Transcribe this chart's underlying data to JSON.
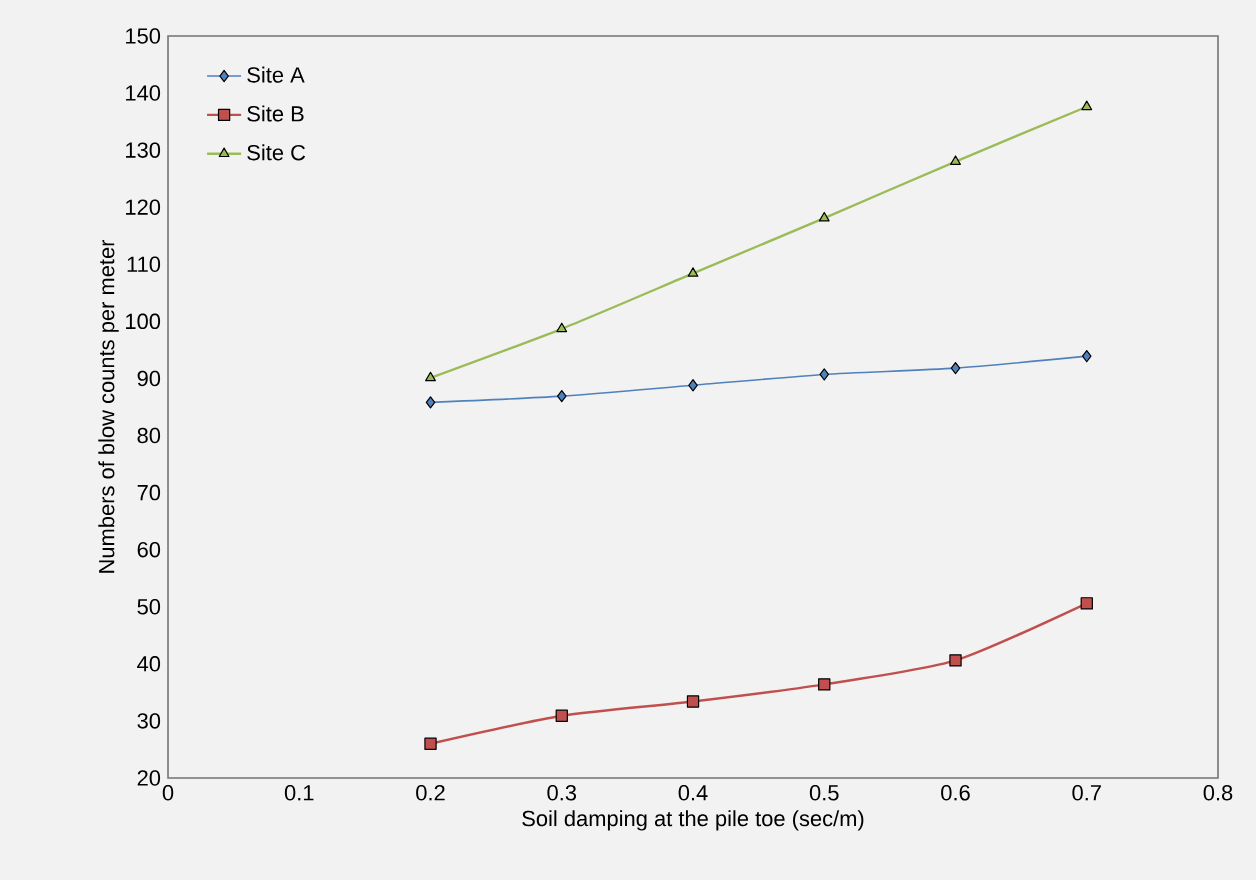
{
  "chart_data": {
    "type": "line",
    "xlabel": "Soil damping at the pile toe (sec/m)",
    "ylabel": "Numbers of blow counts per meter",
    "x": [
      0.2,
      0.3,
      0.4,
      0.5,
      0.6,
      0.7
    ],
    "series": [
      {
        "name": "Site A",
        "color": "#4f81bd",
        "marker": "diamond",
        "values": [
          85.8,
          86.9,
          88.8,
          90.7,
          91.8,
          93.9
        ]
      },
      {
        "name": "Site B",
        "color": "#c0504d",
        "marker": "square",
        "values": [
          26.0,
          30.9,
          33.4,
          36.4,
          40.6,
          50.6
        ]
      },
      {
        "name": "Site C",
        "color": "#9bbb59",
        "marker": "triangle",
        "values": [
          90.1,
          98.7,
          108.4,
          118.1,
          128.0,
          137.6
        ]
      }
    ],
    "xlim": [
      0,
      0.8
    ],
    "xticks": [
      0,
      0.1,
      0.2,
      0.3,
      0.4,
      0.5,
      0.6,
      0.7,
      0.8
    ],
    "ylim": [
      20,
      150
    ],
    "yticks": [
      20,
      30,
      40,
      50,
      60,
      70,
      80,
      90,
      100,
      110,
      120,
      130,
      140,
      150
    ],
    "grid": false,
    "legend": "top left",
    "line_style": "solid"
  }
}
